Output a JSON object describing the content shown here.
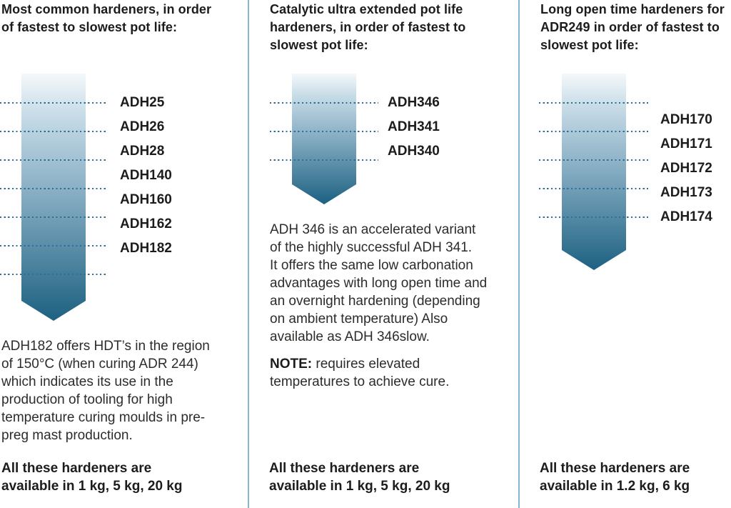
{
  "colors": {
    "dot_line": "#2f6f95",
    "arrow_gradient_top": "#f4f8fa",
    "arrow_gradient_bottom": "#1d6181",
    "divider": "#85b7d1",
    "heading_text": "#1d1c1c",
    "body_text": "#2e2c2a"
  },
  "columns": [
    {
      "id": "most-common",
      "heading": "Most common hardeners, in order\nof fastest to slowest pot life:",
      "labels": [
        "ADH25",
        "ADH26",
        "ADH28",
        "ADH140",
        "ADH160",
        "ADH162",
        "ADH182"
      ],
      "paragraph": "ADH182 offers HDT’s in the region\nof 150°C (when curing ADR 244)\nwhich indicates its use in the\nproduction of tooling for high\ntemperature curing moulds in pre-\npreg mast production.",
      "availability": "All these hardeners are\navailable in 1 kg, 5 kg, 20 kg"
    },
    {
      "id": "catalytic-ultra-extended",
      "heading": "Catalytic ultra extended pot life\nhardeners, in order of fastest to\nslowest pot life:",
      "labels": [
        "ADH346",
        "ADH341",
        "ADH340"
      ],
      "paragraph": "ADH 346 is an accelerated variant\nof the highly successful ADH 341.\nIt offers the same low carbonation\nadvantages with long open time and\nan overnight hardening (depending\non ambient temperature) Also\navailable as ADH 346slow.",
      "note_label": "NOTE:",
      "note_text": "requires elevated\ntemperatures to achieve cure.",
      "availability": "All these hardeners are\navailable in 1 kg, 5 kg, 20 kg"
    },
    {
      "id": "long-open-time",
      "heading": "Long open time hardeners for\nADR249 in order of fastest to\nslowest pot life:",
      "labels": [
        "ADH170",
        "ADH171",
        "ADH172",
        "ADH173",
        "ADH174"
      ],
      "availability": "All these hardeners are\navailable in 1.2 kg, 6 kg"
    }
  ]
}
